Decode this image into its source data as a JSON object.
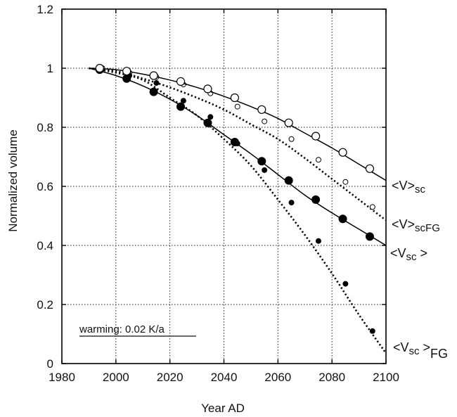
{
  "chart_data": {
    "type": "line",
    "xlabel": "Year AD",
    "ylabel": "Normalized volume",
    "xlim": [
      1980,
      2100
    ],
    "ylim": [
      0,
      1.2
    ],
    "x_ticks": [
      "1980",
      "2000",
      "2020",
      "2040",
      "2060",
      "2080",
      "2100"
    ],
    "y_ticks": [
      "0",
      "0.2",
      "0.4",
      "0.6",
      "0.8",
      "1",
      "1.2"
    ],
    "grid": true,
    "annotation": "warming: 0.02 K/a",
    "series": [
      {
        "name": "<V>scFG",
        "label": {
          "main": "<V>",
          "sub": "scFG"
        },
        "style": "dotted",
        "marker": "small-open-circle",
        "curve_x": [
          1990,
          2000,
          2010,
          2020,
          2030,
          2040,
          2050,
          2060,
          2070,
          2080,
          2090,
          2100
        ],
        "curve_y": [
          1.0,
          0.99,
          0.965,
          0.935,
          0.9,
          0.86,
          0.81,
          0.76,
          0.695,
          0.625,
          0.555,
          0.485
        ],
        "points_x": [
          1995,
          2005,
          2015,
          2025,
          2035,
          2045,
          2055,
          2065,
          2075,
          2085,
          2095
        ],
        "points_y": [
          1.0,
          0.985,
          0.97,
          0.945,
          0.915,
          0.87,
          0.82,
          0.76,
          0.69,
          0.615,
          0.53
        ]
      },
      {
        "name": "<Vsc>",
        "label": {
          "main": "<V",
          "sub": "sc",
          "end": " >"
        },
        "style": "solid",
        "marker": "large-filled-circle",
        "curve_x": [
          1990,
          2000,
          2010,
          2020,
          2030,
          2040,
          2050,
          2060,
          2070,
          2080,
          2090,
          2100
        ],
        "curve_y": [
          1.0,
          0.975,
          0.94,
          0.895,
          0.84,
          0.775,
          0.71,
          0.64,
          0.57,
          0.51,
          0.455,
          0.4
        ],
        "points_x": [
          1994,
          2004,
          2014,
          2024,
          2034,
          2044,
          2054,
          2064,
          2074,
          2084,
          2094
        ],
        "points_y": [
          0.995,
          0.965,
          0.92,
          0.87,
          0.815,
          0.75,
          0.685,
          0.62,
          0.555,
          0.49,
          0.43
        ]
      },
      {
        "name": "<Vsc>FG",
        "label": {
          "main": "<V",
          "sub": "sc",
          "end": " >",
          "sub2": "FG"
        },
        "style": "dotted",
        "marker": "small-filled-circle",
        "curve_x": [
          1990,
          2000,
          2010,
          2020,
          2030,
          2040,
          2050,
          2060,
          2070,
          2080,
          2090,
          2100
        ],
        "curve_y": [
          1.0,
          0.985,
          0.96,
          0.9,
          0.84,
          0.76,
          0.67,
          0.555,
          0.435,
          0.305,
          0.165,
          0.035
        ],
        "points_x": [
          2005,
          2015,
          2025,
          2035,
          2045,
          2055,
          2065,
          2075,
          2085,
          2095
        ],
        "points_y": [
          0.975,
          0.95,
          0.89,
          0.835,
          0.745,
          0.655,
          0.545,
          0.415,
          0.27,
          0.11
        ]
      },
      {
        "name": "<V>sc",
        "label": {
          "main": "<V>",
          "sub": "sc"
        },
        "style": "solid",
        "marker": "large-open-circle",
        "curve_x": [
          1990,
          2000,
          2010,
          2020,
          2030,
          2040,
          2050,
          2060,
          2070,
          2080,
          2090,
          2100
        ],
        "curve_y": [
          1.0,
          0.995,
          0.98,
          0.96,
          0.935,
          0.905,
          0.87,
          0.83,
          0.78,
          0.73,
          0.675,
          0.62
        ],
        "points_x": [
          1994,
          2004,
          2014,
          2024,
          2034,
          2044,
          2054,
          2064,
          2074,
          2084,
          2094
        ],
        "points_y": [
          1.0,
          0.99,
          0.975,
          0.955,
          0.93,
          0.9,
          0.86,
          0.815,
          0.77,
          0.715,
          0.66
        ]
      }
    ]
  }
}
